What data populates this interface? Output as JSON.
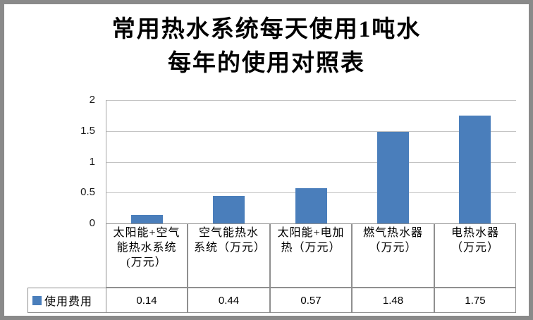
{
  "title": {
    "line1": "常用热水系统每天使用1吨水",
    "line2": "每年的使用对照表"
  },
  "legend": {
    "label": "使用费用"
  },
  "y_axis": {
    "ticks": [
      "2",
      "1.5",
      "1",
      "0.5",
      "0"
    ],
    "min": 0,
    "max": 2
  },
  "colors": {
    "bar": "#4a7ebb",
    "gridline": "#c3c3c3",
    "table_border": "#8f8f8f",
    "frame": "#8a8a8a"
  },
  "chart_data": {
    "type": "bar",
    "title": "常用热水系统每天使用1吨水每年的使用对照表",
    "categories": [
      "太阳能+空气能热水系统(万元）",
      "空气能热水系统（万元）",
      "太阳能+电加热（万元）",
      "燃气热水器（万元）",
      "电热水器（万元）"
    ],
    "series": [
      {
        "name": "使用费用",
        "values": [
          0.14,
          0.44,
          0.57,
          1.48,
          1.75
        ]
      }
    ],
    "xlabel": "",
    "ylabel": "",
    "ylim": [
      0,
      2
    ],
    "ytick_step": 0.5,
    "grid": true,
    "legend_position": "bottom-left-data-table"
  },
  "table": {
    "row_header": "使用费用",
    "values": [
      "0.14",
      "0.44",
      "0.57",
      "1.48",
      "1.75"
    ]
  }
}
